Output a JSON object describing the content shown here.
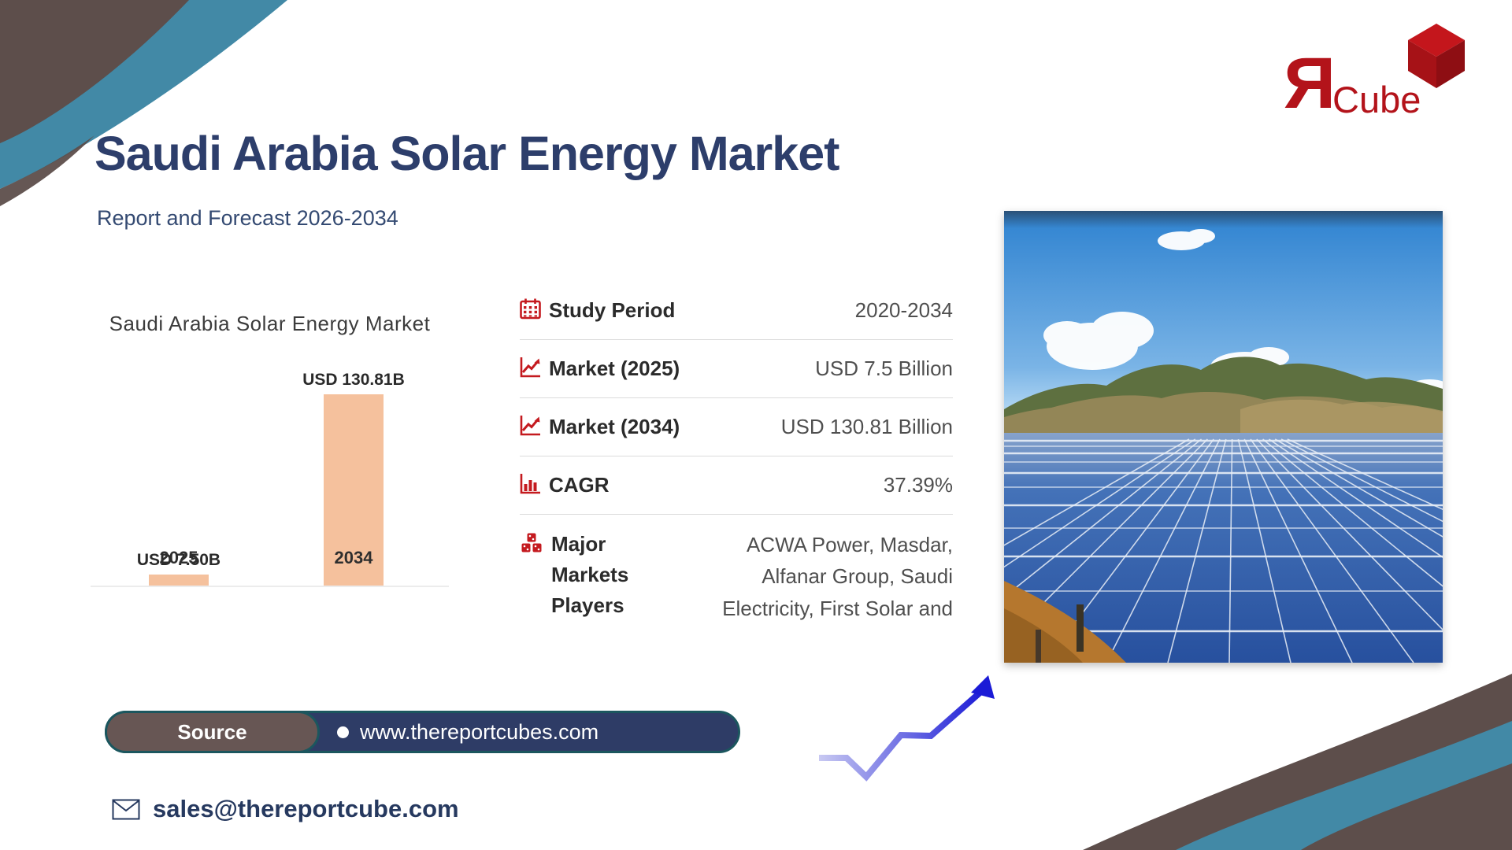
{
  "logo": {
    "letter": "Я",
    "word": "Cube"
  },
  "header": {
    "title": "Saudi Arabia Solar Energy Market",
    "subtitle": "Report and Forecast 2026-2034"
  },
  "chart_data": {
    "type": "bar",
    "title": "Saudi Arabia Solar Energy Market",
    "categories": [
      "2025",
      "2034"
    ],
    "values": [
      7.5,
      130.81
    ],
    "bar_labels": [
      "USD 7.50B",
      "USD 130.81B"
    ],
    "unit": "USD Billion",
    "bar_color": "#f5c19d",
    "ylim": [
      0,
      130.81
    ],
    "grid": false,
    "legend": false
  },
  "info_table": {
    "rows": [
      {
        "icon": "calendar-icon",
        "label": "Study Period",
        "value": "2020-2034"
      },
      {
        "icon": "line-chart-icon",
        "label": "Market (2025)",
        "value": "USD 7.5 Billion"
      },
      {
        "icon": "line-chart-icon",
        "label": "Market (2034)",
        "value": "USD 130.81 Billion"
      },
      {
        "icon": "bar-chart-icon",
        "label": "CAGR",
        "value": "37.39%"
      },
      {
        "icon": "cubes-icon",
        "label": "Major Markets Players",
        "value": "ACWA Power, Masdar, Alfanar Group, Saudi Electricity, First Solar and"
      }
    ]
  },
  "source": {
    "label": "Source",
    "url": "www.thereportcubes.com"
  },
  "contact": {
    "email": "sales@thereportcube.com"
  },
  "colors": {
    "navy": "#2d3e6b",
    "brown": "#5d4e4b",
    "teal": "#4289a6",
    "accent_red": "#c41a1f",
    "logo_red": "#b3131a",
    "bar_peach": "#f5c19d",
    "pill_navy": "#2e3c66",
    "pill_brown": "#675654",
    "pill_border_teal": "#1b565e"
  }
}
